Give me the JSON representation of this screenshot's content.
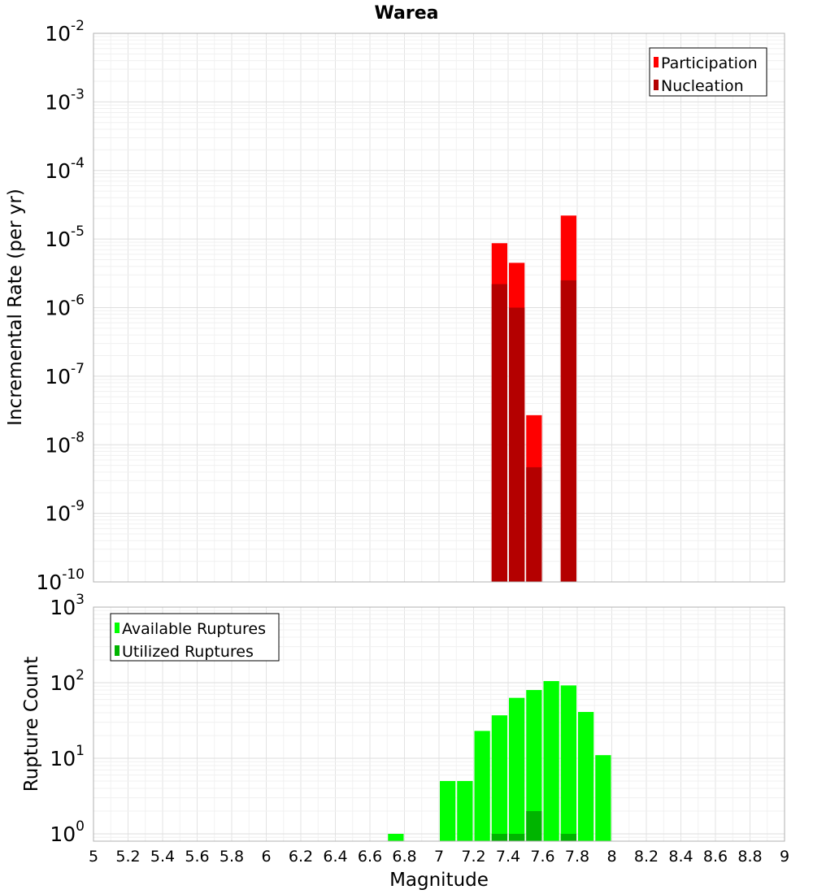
{
  "chart_data": [
    {
      "type": "bar",
      "title": "Warea",
      "ylabel": "Incremental Rate (per yr)",
      "xlabel": "",
      "yscale": "log",
      "ylim": [
        1e-10,
        0.01
      ],
      "xlim": [
        5,
        9
      ],
      "bar_width": 0.1,
      "yticks": [
        {
          "base": "10",
          "exp": "-2"
        },
        {
          "base": "10",
          "exp": "-3"
        },
        {
          "base": "10",
          "exp": "-4"
        },
        {
          "base": "10",
          "exp": "-5"
        },
        {
          "base": "10",
          "exp": "-6"
        },
        {
          "base": "10",
          "exp": "-7"
        },
        {
          "base": "10",
          "exp": "-8"
        },
        {
          "base": "10",
          "exp": "-9"
        },
        {
          "base": "10",
          "exp": "-10"
        }
      ],
      "legend_position": "top-right",
      "series": [
        {
          "name": "Participation",
          "color": "#ff0000",
          "points": [
            {
              "x": 7.35,
              "y": 8.7e-06
            },
            {
              "x": 7.45,
              "y": 4.5e-06
            },
            {
              "x": 7.55,
              "y": 2.7e-08
            },
            {
              "x": 7.75,
              "y": 2.2e-05
            }
          ]
        },
        {
          "name": "Nucleation",
          "color": "#b40000",
          "points": [
            {
              "x": 7.35,
              "y": 2.2e-06
            },
            {
              "x": 7.45,
              "y": 1e-06
            },
            {
              "x": 7.55,
              "y": 4.7e-09
            },
            {
              "x": 7.75,
              "y": 2.5e-06
            }
          ]
        }
      ]
    },
    {
      "type": "bar",
      "title": "",
      "ylabel": "Rupture Count",
      "xlabel": "Magnitude",
      "yscale": "log",
      "ylim": [
        0.8,
        1000
      ],
      "xlim": [
        5,
        9
      ],
      "bar_width": 0.1,
      "yticks": [
        {
          "value": 1000,
          "base": "10",
          "exp": "3"
        },
        {
          "value": 100,
          "base": "10",
          "exp": "2"
        },
        {
          "value": 10,
          "base": "10",
          "exp": "1"
        },
        {
          "value": 1,
          "base": "10",
          "exp": "0"
        }
      ],
      "xticks": [
        "5",
        "5.2",
        "5.4",
        "5.6",
        "5.8",
        "6",
        "6.2",
        "6.4",
        "6.6",
        "6.8",
        "7",
        "7.2",
        "7.4",
        "7.6",
        "7.8",
        "8",
        "8.2",
        "8.4",
        "8.6",
        "8.8",
        "9"
      ],
      "legend_position": "top-left",
      "series": [
        {
          "name": "Available Ruptures",
          "color": "#00ff00",
          "points": [
            {
              "x": 6.75,
              "y": 1
            },
            {
              "x": 7.05,
              "y": 5
            },
            {
              "x": 7.15,
              "y": 5
            },
            {
              "x": 7.25,
              "y": 23
            },
            {
              "x": 7.35,
              "y": 37
            },
            {
              "x": 7.45,
              "y": 63
            },
            {
              "x": 7.55,
              "y": 80
            },
            {
              "x": 7.65,
              "y": 105
            },
            {
              "x": 7.75,
              "y": 92
            },
            {
              "x": 7.85,
              "y": 41
            },
            {
              "x": 7.95,
              "y": 11
            }
          ]
        },
        {
          "name": "Utilized Ruptures",
          "color": "#00b400",
          "points": [
            {
              "x": 7.35,
              "y": 1
            },
            {
              "x": 7.45,
              "y": 1
            },
            {
              "x": 7.55,
              "y": 2
            },
            {
              "x": 7.75,
              "y": 1
            }
          ]
        }
      ]
    }
  ]
}
